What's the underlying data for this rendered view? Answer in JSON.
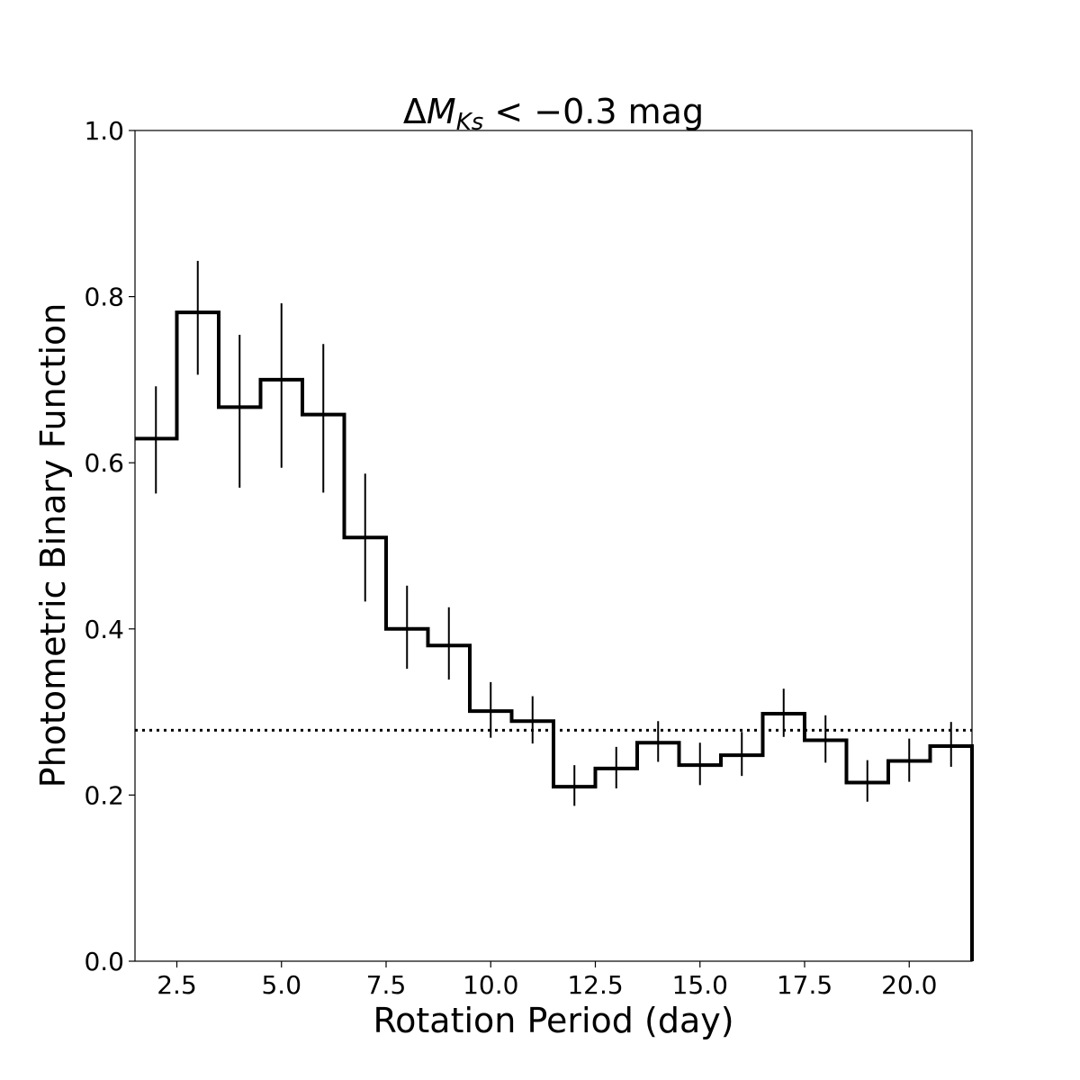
{
  "chart_data": {
    "type": "histogram-step",
    "title": {
      "delta": "Δ",
      "symbol": "M",
      "subscript": "Ks",
      "rest": " < −0.3 mag"
    },
    "xlabel": "Rotation Period (day)",
    "ylabel": "Photometric Binary Function",
    "xlim": [
      1.5,
      21.5
    ],
    "ylim": [
      0.0,
      1.0
    ],
    "xticks": [
      {
        "value": 2.5,
        "label": "2.5"
      },
      {
        "value": 5.0,
        "label": "5.0"
      },
      {
        "value": 7.5,
        "label": "7.5"
      },
      {
        "value": 10.0,
        "label": "10.0"
      },
      {
        "value": 12.5,
        "label": "12.5"
      },
      {
        "value": 15.0,
        "label": "15.0"
      },
      {
        "value": 17.5,
        "label": "17.5"
      },
      {
        "value": 20.0,
        "label": "20.0"
      }
    ],
    "yticks": [
      {
        "value": 0.0,
        "label": "0.0"
      },
      {
        "value": 0.2,
        "label": "0.2"
      },
      {
        "value": 0.4,
        "label": "0.4"
      },
      {
        "value": 0.6,
        "label": "0.6"
      },
      {
        "value": 0.8,
        "label": "0.8"
      },
      {
        "value": 1.0,
        "label": "1.0"
      }
    ],
    "bin_width": 1.0,
    "bins": [
      {
        "center": 2,
        "value": 0.629,
        "err_low": 0.563,
        "err_high": 0.692
      },
      {
        "center": 3,
        "value": 0.781,
        "err_low": 0.706,
        "err_high": 0.843
      },
      {
        "center": 4,
        "value": 0.667,
        "err_low": 0.57,
        "err_high": 0.754
      },
      {
        "center": 5,
        "value": 0.7,
        "err_low": 0.594,
        "err_high": 0.792
      },
      {
        "center": 6,
        "value": 0.658,
        "err_low": 0.564,
        "err_high": 0.743
      },
      {
        "center": 7,
        "value": 0.51,
        "err_low": 0.433,
        "err_high": 0.587
      },
      {
        "center": 8,
        "value": 0.4,
        "err_low": 0.352,
        "err_high": 0.452
      },
      {
        "center": 9,
        "value": 0.38,
        "err_low": 0.339,
        "err_high": 0.426
      },
      {
        "center": 10,
        "value": 0.301,
        "err_low": 0.269,
        "err_high": 0.336
      },
      {
        "center": 11,
        "value": 0.289,
        "err_low": 0.262,
        "err_high": 0.319
      },
      {
        "center": 12,
        "value": 0.21,
        "err_low": 0.187,
        "err_high": 0.236
      },
      {
        "center": 13,
        "value": 0.232,
        "err_low": 0.208,
        "err_high": 0.258
      },
      {
        "center": 14,
        "value": 0.263,
        "err_low": 0.24,
        "err_high": 0.289
      },
      {
        "center": 15,
        "value": 0.236,
        "err_low": 0.212,
        "err_high": 0.263
      },
      {
        "center": 16,
        "value": 0.248,
        "err_low": 0.223,
        "err_high": 0.276
      },
      {
        "center": 17,
        "value": 0.298,
        "err_low": 0.27,
        "err_high": 0.328
      },
      {
        "center": 18,
        "value": 0.266,
        "err_low": 0.239,
        "err_high": 0.296
      },
      {
        "center": 19,
        "value": 0.215,
        "err_low": 0.192,
        "err_high": 0.242
      },
      {
        "center": 20,
        "value": 0.241,
        "err_low": 0.216,
        "err_high": 0.268
      },
      {
        "center": 21,
        "value": 0.259,
        "err_low": 0.234,
        "err_high": 0.288
      }
    ],
    "reference_line": {
      "value": 0.278,
      "style": "dotted"
    },
    "grid": false,
    "colors": {
      "line": "#000000",
      "background": "#ffffff"
    }
  }
}
